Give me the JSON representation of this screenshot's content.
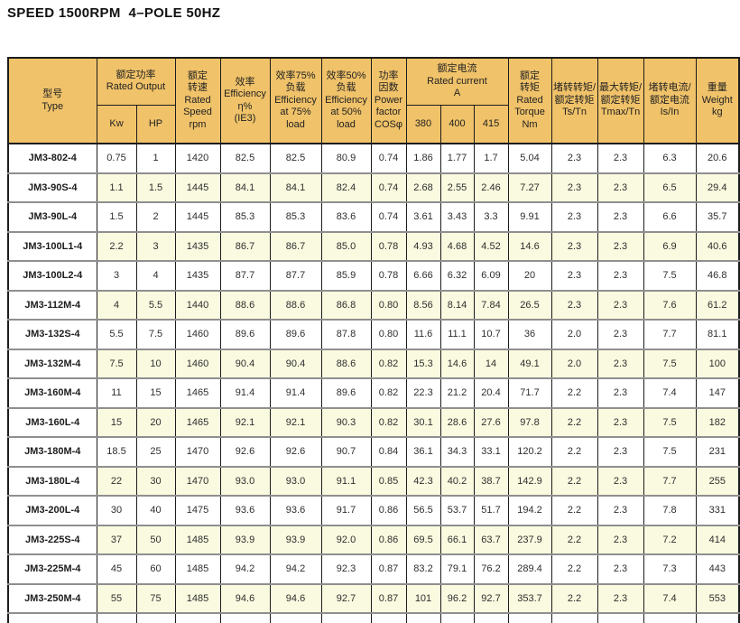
{
  "title": "SPEED 1500RPM  4–POLE 50HZ",
  "colors": {
    "header_bg": "#F0C269",
    "alt_row_bg": "#FAFAE0",
    "row_bg": "#FFFFFF",
    "grid_vertical": "#1C1C1C",
    "grid_horizontal": "#8F8F8F",
    "text": "#2E2E2E"
  },
  "table": {
    "columns": [
      {
        "id": "type",
        "label": "型号\nType"
      },
      {
        "id": "rated_output",
        "label": "额定功率\nRated Output",
        "sub": [
          "Kw",
          "HP"
        ]
      },
      {
        "id": "rated_speed",
        "label": "额定\n转速\nRated\nSpeed\nrpm"
      },
      {
        "id": "efficiency",
        "label": "效率\nEfficiency\nη%\n(IE3)"
      },
      {
        "id": "efficiency_75",
        "label": "效率75%\n负载\nEfficiency\nat 75%\nload"
      },
      {
        "id": "efficiency_50",
        "label": "效率50%\n负载\nEfficiency\nat 50%\nload"
      },
      {
        "id": "power_factor",
        "label": "功率\n因数\nPower\nfactor\nCOSφ"
      },
      {
        "id": "rated_current",
        "label": "额定电流\nRated current\nA",
        "sub": [
          "380",
          "400",
          "415"
        ]
      },
      {
        "id": "rated_torque",
        "label": "额定\n转矩\nRated\nTorque\nNm"
      },
      {
        "id": "ts_tn",
        "label": "堵转转矩/\n额定转矩\nTs/Tn"
      },
      {
        "id": "tmax_tn",
        "label": "最大转矩/\n额定转矩\nTmax/Tn"
      },
      {
        "id": "is_in",
        "label": "堵转电流/\n额定电流\nIs/In"
      },
      {
        "id": "weight",
        "label": "重量\nWeight\nkg"
      }
    ],
    "rows": [
      {
        "type": "JM3-802-4",
        "values": [
          "0.75",
          "1",
          "1420",
          "82.5",
          "82.5",
          "80.9",
          "0.74",
          "1.86",
          "1.77",
          "1.7",
          "5.04",
          "2.3",
          "2.3",
          "6.3",
          "20.6"
        ]
      },
      {
        "type": "JM3-90S-4",
        "values": [
          "1.1",
          "1.5",
          "1445",
          "84.1",
          "84.1",
          "82.4",
          "0.74",
          "2.68",
          "2.55",
          "2.46",
          "7.27",
          "2.3",
          "2.3",
          "6.5",
          "29.4"
        ]
      },
      {
        "type": "JM3-90L-4",
        "values": [
          "1.5",
          "2",
          "1445",
          "85.3",
          "85.3",
          "83.6",
          "0.74",
          "3.61",
          "3.43",
          "3.3",
          "9.91",
          "2.3",
          "2.3",
          "6.6",
          "35.7"
        ]
      },
      {
        "type": "JM3-100L1-4",
        "values": [
          "2.2",
          "3",
          "1435",
          "86.7",
          "86.7",
          "85.0",
          "0.78",
          "4.93",
          "4.68",
          "4.52",
          "14.6",
          "2.3",
          "2.3",
          "6.9",
          "40.6"
        ]
      },
      {
        "type": "JM3-100L2-4",
        "values": [
          "3",
          "4",
          "1435",
          "87.7",
          "87.7",
          "85.9",
          "0.78",
          "6.66",
          "6.32",
          "6.09",
          "20",
          "2.3",
          "2.3",
          "7.5",
          "46.8"
        ]
      },
      {
        "type": "JM3-112M-4",
        "values": [
          "4",
          "5.5",
          "1440",
          "88.6",
          "88.6",
          "86.8",
          "0.80",
          "8.56",
          "8.14",
          "7.84",
          "26.5",
          "2.3",
          "2.3",
          "7.6",
          "61.2"
        ]
      },
      {
        "type": "JM3-132S-4",
        "values": [
          "5.5",
          "7.5",
          "1460",
          "89.6",
          "89.6",
          "87.8",
          "0.80",
          "11.6",
          "11.1",
          "10.7",
          "36",
          "2.0",
          "2.3",
          "7.7",
          "81.1"
        ]
      },
      {
        "type": "JM3-132M-4",
        "values": [
          "7.5",
          "10",
          "1460",
          "90.4",
          "90.4",
          "88.6",
          "0.82",
          "15.3",
          "14.6",
          "14",
          "49.1",
          "2.0",
          "2.3",
          "7.5",
          "100"
        ]
      },
      {
        "type": "JM3-160M-4",
        "values": [
          "11",
          "15",
          "1465",
          "91.4",
          "91.4",
          "89.6",
          "0.82",
          "22.3",
          "21.2",
          "20.4",
          "71.7",
          "2.2",
          "2.3",
          "7.4",
          "147"
        ]
      },
      {
        "type": "JM3-160L-4",
        "values": [
          "15",
          "20",
          "1465",
          "92.1",
          "92.1",
          "90.3",
          "0.82",
          "30.1",
          "28.6",
          "27.6",
          "97.8",
          "2.2",
          "2.3",
          "7.5",
          "182"
        ]
      },
      {
        "type": "JM3-180M-4",
        "values": [
          "18.5",
          "25",
          "1470",
          "92.6",
          "92.6",
          "90.7",
          "0.84",
          "36.1",
          "34.3",
          "33.1",
          "120.2",
          "2.2",
          "2.3",
          "7.5",
          "231"
        ]
      },
      {
        "type": "JM3-180L-4",
        "values": [
          "22",
          "30",
          "1470",
          "93.0",
          "93.0",
          "91.1",
          "0.85",
          "42.3",
          "40.2",
          "38.7",
          "142.9",
          "2.2",
          "2.3",
          "7.7",
          "255"
        ]
      },
      {
        "type": "JM3-200L-4",
        "values": [
          "30",
          "40",
          "1475",
          "93.6",
          "93.6",
          "91.7",
          "0.86",
          "56.5",
          "53.7",
          "51.7",
          "194.2",
          "2.2",
          "2.3",
          "7.8",
          "331"
        ]
      },
      {
        "type": "JM3-225S-4",
        "values": [
          "37",
          "50",
          "1485",
          "93.9",
          "93.9",
          "92.0",
          "0.86",
          "69.5",
          "66.1",
          "63.7",
          "237.9",
          "2.2",
          "2.3",
          "7.2",
          "414"
        ]
      },
      {
        "type": "JM3-225M-4",
        "values": [
          "45",
          "60",
          "1485",
          "94.2",
          "94.2",
          "92.3",
          "0.87",
          "83.2",
          "79.1",
          "76.2",
          "289.4",
          "2.2",
          "2.3",
          "7.3",
          "443"
        ]
      },
      {
        "type": "JM3-250M-4",
        "values": [
          "55",
          "75",
          "1485",
          "94.6",
          "94.6",
          "92.7",
          "0.87",
          "101",
          "96.2",
          "92.7",
          "353.7",
          "2.2",
          "2.3",
          "7.4",
          "553"
        ]
      }
    ]
  }
}
